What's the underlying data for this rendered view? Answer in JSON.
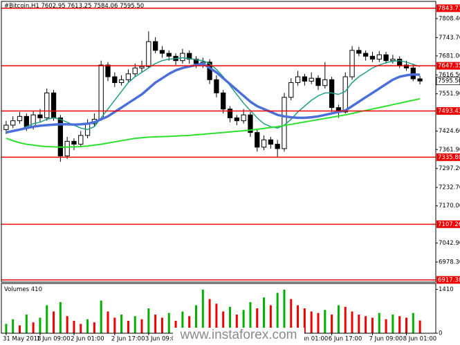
{
  "chart_data": {
    "type": "candlestick",
    "symbol": "#Bitcoin,H1",
    "categories": [
      "31 May 2018",
      null,
      null,
      null,
      null,
      "1 Jun 09:00",
      null,
      null,
      null,
      null,
      "2 Jun 01:00",
      null,
      null,
      null,
      null,
      null,
      "2 Jun 17:00",
      null,
      null,
      null,
      null,
      "3 Jun 09:00",
      null,
      null,
      null,
      null,
      null,
      null,
      null,
      null,
      null,
      null,
      null,
      null,
      null,
      null,
      null,
      null,
      null,
      null,
      null,
      null,
      null,
      "6 Jun 01:00",
      null,
      null,
      null,
      null,
      "6 Jun 17:00",
      null,
      null,
      null,
      null,
      null,
      "7 Jun 09:00",
      null,
      null,
      null,
      null,
      "8 Jun 01:00",
      null,
      null
    ],
    "open": [
      7430,
      7445,
      7460,
      7475,
      7440,
      7480,
      7470,
      7555,
      7470,
      7340,
      7390,
      7380,
      7410,
      7450,
      7465,
      7650,
      7610,
      7590,
      7600,
      7620,
      7640,
      7645,
      7730,
      7700,
      7690,
      7680,
      7665,
      7690,
      7670,
      7655,
      7660,
      7600,
      7555,
      7500,
      7470,
      7460,
      7480,
      7420,
      7370,
      7395,
      7380,
      7365,
      7540,
      7590,
      7610,
      7595,
      7605,
      7580,
      7600,
      7505,
      7490,
      7610,
      7700,
      7690,
      7680,
      7670,
      7685,
      7665,
      7670,
      7650,
      7640,
      7602.95
    ],
    "high": [
      7460,
      7475,
      7490,
      7485,
      7495,
      7500,
      7570,
      7565,
      7480,
      7405,
      7400,
      7425,
      7465,
      7485,
      7665,
      7660,
      7625,
      7615,
      7635,
      7655,
      7665,
      7765,
      7745,
      7715,
      7700,
      7690,
      7705,
      7700,
      7680,
      7675,
      7670,
      7615,
      7565,
      7510,
      7480,
      7500,
      7490,
      7430,
      7410,
      7405,
      7395,
      7555,
      7605,
      7630,
      7620,
      7625,
      7615,
      7660,
      7610,
      7515,
      7625,
      7715,
      7712,
      7700,
      7695,
      7698,
      7695,
      7685,
      7680,
      7665,
      7655,
      7613.25
    ],
    "low": [
      7415,
      7435,
      7450,
      7425,
      7430,
      7455,
      7460,
      7460,
      7320,
      7330,
      7360,
      7370,
      7400,
      7440,
      7460,
      7595,
      7575,
      7580,
      7590,
      7610,
      7625,
      7640,
      7690,
      7675,
      7665,
      7650,
      7655,
      7655,
      7640,
      7640,
      7585,
      7540,
      7485,
      7455,
      7445,
      7450,
      7405,
      7355,
      7360,
      7365,
      7335,
      7355,
      7530,
      7580,
      7580,
      7585,
      7565,
      7570,
      7490,
      7470,
      7485,
      7600,
      7680,
      7665,
      7660,
      7660,
      7655,
      7655,
      7640,
      7630,
      7595,
      7584.06
    ],
    "close": [
      7445,
      7460,
      7475,
      7440,
      7480,
      7470,
      7555,
      7470,
      7340,
      7390,
      7380,
      7410,
      7450,
      7465,
      7650,
      7610,
      7590,
      7600,
      7620,
      7640,
      7645,
      7730,
      7700,
      7690,
      7680,
      7665,
      7690,
      7670,
      7655,
      7660,
      7600,
      7555,
      7500,
      7470,
      7460,
      7480,
      7420,
      7370,
      7395,
      7380,
      7365,
      7540,
      7590,
      7610,
      7595,
      7605,
      7580,
      7600,
      7505,
      7490,
      7610,
      7700,
      7690,
      7680,
      7670,
      7685,
      7665,
      7670,
      7650,
      7640,
      7602.95,
      7595.5
    ],
    "candle_color": "#000000",
    "last_price": {
      "value": 7595.5,
      "label": "7595.50"
    },
    "levels": [
      7843.71,
      7647.35,
      7493.43,
      {
        "value": 7335.8,
        "label": "7335.80"
      },
      7107.26,
      6917.38
    ],
    "level_color": "#ee0000",
    "ylim": [
      6910,
      7867
    ],
    "yticks": [
      {
        "value": 7808.4,
        "label": "7808.40"
      },
      {
        "value": 7743.7,
        "label": "7743.70"
      },
      {
        "value": 7681,
        "label": "7681.00"
      },
      {
        "value": 7616.5,
        "label": "7616.50"
      },
      {
        "value": 7551.9,
        "label": "7551.90"
      },
      {
        "value": 7424.6,
        "label": "7424.60"
      },
      {
        "value": 7361.9,
        "label": "7361.90"
      },
      {
        "value": 7297.2,
        "label": "7297.20"
      },
      {
        "value": 7232.7,
        "label": "7232.70"
      },
      {
        "value": 7170,
        "label": "7170.00"
      },
      {
        "value": 7042.9,
        "label": "7042.90"
      },
      {
        "value": 6978.3,
        "label": "6978.30"
      }
    ],
    "moving_averages": [
      {
        "color": "#1f9e8a",
        "width": 1.5,
        "values": [
          7420,
          7425,
          7430,
          7440,
          7450,
          7455,
          7465,
          7470,
          7465,
          7455,
          7445,
          7435,
          7430,
          7440,
          7470,
          7500,
          7530,
          7560,
          7590,
          7610,
          7625,
          7640,
          7655,
          7665,
          7670,
          7672,
          7675,
          7672,
          7668,
          7665,
          7655,
          7635,
          7610,
          7580,
          7550,
          7520,
          7495,
          7470,
          7450,
          7440,
          7435,
          7445,
          7465,
          7490,
          7510,
          7530,
          7545,
          7555,
          7555,
          7550,
          7560,
          7590,
          7610,
          7625,
          7640,
          7650,
          7658,
          7663,
          7665,
          7660,
          7652,
          7645
        ]
      },
      {
        "color": "#4a6fd8",
        "width": 3.5,
        "values": [
          7420,
          7425,
          7430,
          7435,
          7440,
          7443,
          7445,
          7447,
          7448,
          7448,
          7447,
          7448,
          7450,
          7455,
          7465,
          7475,
          7490,
          7505,
          7520,
          7535,
          7550,
          7570,
          7590,
          7605,
          7620,
          7632,
          7640,
          7645,
          7650,
          7655,
          7640,
          7625,
          7605,
          7585,
          7565,
          7545,
          7525,
          7510,
          7500,
          7490,
          7480,
          7475,
          7472,
          7470,
          7470,
          7472,
          7475,
          7480,
          7485,
          7490,
          7495,
          7510,
          7525,
          7540,
          7555,
          7570,
          7585,
          7600,
          7610,
          7615,
          7618,
          7617
        ]
      },
      {
        "color": "#2ee02e",
        "width": 2,
        "values": [
          7400,
          7392,
          7385,
          7380,
          7377,
          7374,
          7372,
          7371,
          7370,
          7370,
          7371,
          7372,
          7374,
          7377,
          7380,
          7384,
          7388,
          7392,
          7396,
          7400,
          7402,
          7404,
          7405,
          7406,
          7407,
          7408,
          7409,
          7410,
          7412,
          7414,
          7416,
          7418,
          7420,
          7422,
          7424,
          7426,
          7428,
          7431,
          7434,
          7437,
          7440,
          7444,
          7448,
          7452,
          7456,
          7460,
          7464,
          7468,
          7472,
          7476,
          7480,
          7485,
          7490,
          7495,
          7500,
          7505,
          7510,
          7515,
          7520,
          7525,
          7530,
          7535
        ]
      }
    ],
    "volume": {
      "label": "Volumes",
      "values": [
        300,
        450,
        250,
        600,
        350,
        500,
        900,
        700,
        1000,
        550,
        400,
        300,
        450,
        350,
        1050,
        700,
        500,
        600,
        400,
        550,
        450,
        800,
        600,
        500,
        650,
        400,
        700,
        550,
        900,
        1400,
        1100,
        950,
        700,
        850,
        600,
        750,
        1000,
        800,
        1150,
        900,
        1300,
        1400,
        1100,
        900,
        800,
        700,
        650,
        750,
        600,
        900,
        850,
        700,
        600,
        550,
        500,
        650,
        450,
        600,
        550,
        500,
        650,
        410
      ],
      "ylim": [
        0,
        1600
      ],
      "yticks": [
        0,
        1410
      ],
      "up_color": "#00b000",
      "down_color": "#ee0000"
    },
    "watermark": "www.instaforex.com"
  }
}
